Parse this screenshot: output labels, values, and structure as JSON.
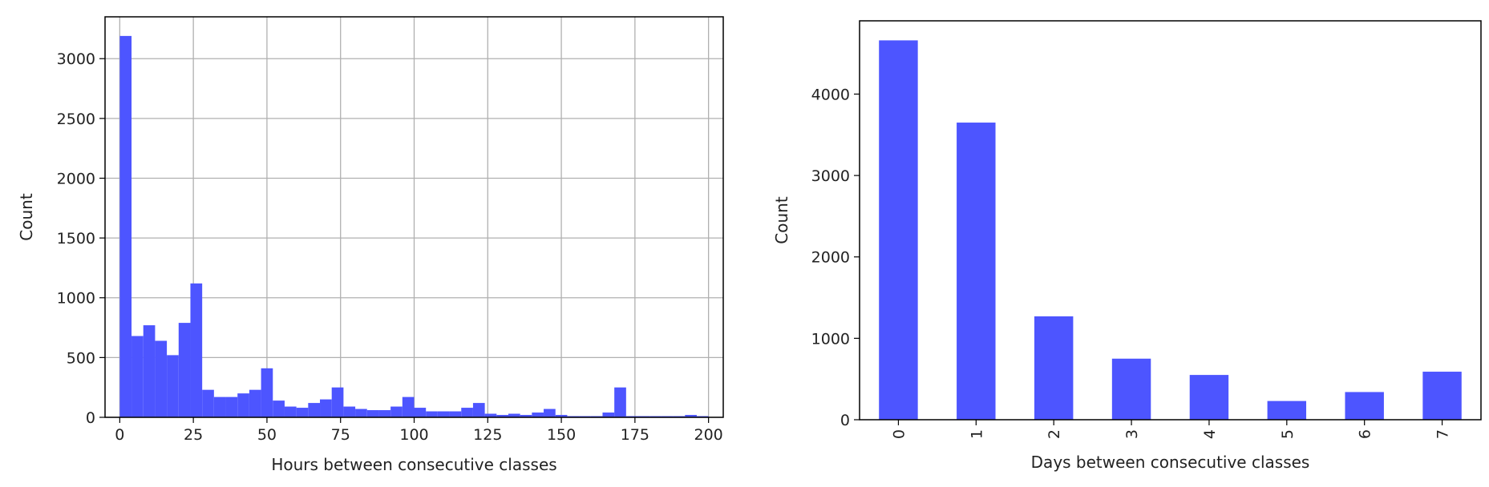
{
  "chart_data": [
    {
      "type": "bar",
      "title": "",
      "xlabel": "Hours between consecutive classes",
      "ylabel": "Count",
      "xlim": [
        -5,
        205
      ],
      "ylim": [
        0,
        3350
      ],
      "grid": true,
      "color": "#4d55ff",
      "xticks": [
        0,
        25,
        50,
        75,
        100,
        125,
        150,
        175,
        200
      ],
      "yticks": [
        0,
        500,
        1000,
        1500,
        2000,
        2500,
        3000
      ],
      "bin_edges": [
        0,
        4,
        8,
        12,
        16,
        20,
        24,
        28,
        32,
        36,
        40,
        44,
        48,
        52,
        56,
        60,
        64,
        68,
        72,
        76,
        80,
        84,
        88,
        92,
        96,
        100,
        104,
        108,
        112,
        116,
        120,
        124,
        128,
        132,
        136,
        140,
        144,
        148,
        152,
        156,
        160,
        164,
        168,
        172,
        176,
        180,
        184,
        188,
        192,
        196,
        200
      ],
      "values": [
        3190,
        680,
        770,
        640,
        520,
        790,
        1120,
        230,
        170,
        170,
        200,
        230,
        410,
        140,
        90,
        80,
        120,
        150,
        250,
        90,
        70,
        60,
        60,
        90,
        170,
        80,
        50,
        50,
        50,
        80,
        120,
        30,
        20,
        30,
        20,
        40,
        70,
        20,
        10,
        10,
        10,
        40,
        250,
        10,
        10,
        10,
        10,
        10,
        20,
        10
      ]
    },
    {
      "type": "bar",
      "title": "",
      "xlabel": "Days between consecutive classes",
      "ylabel": "Count",
      "categories": [
        "0",
        "1",
        "2",
        "3",
        "4",
        "5",
        "6",
        "7"
      ],
      "values": [
        4660,
        3650,
        1270,
        750,
        550,
        230,
        340,
        590
      ],
      "ylim": [
        0,
        4900
      ],
      "grid": false,
      "color": "#4d55ff",
      "yticks": [
        0,
        1000,
        2000,
        3000,
        4000
      ]
    }
  ]
}
